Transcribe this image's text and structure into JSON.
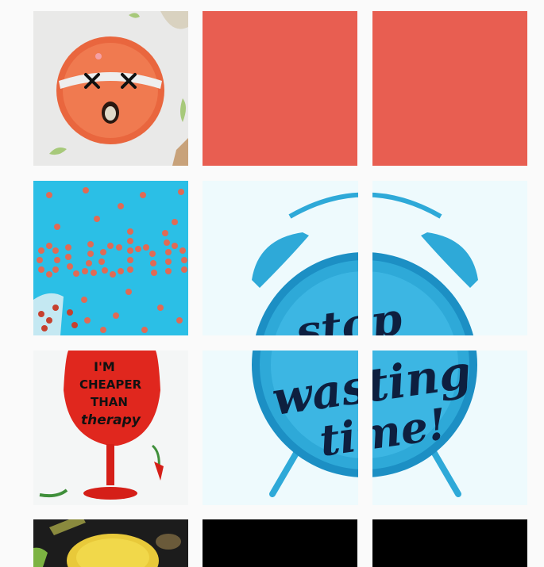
{
  "grid": {
    "posts": [
      {
        "subject": "orange plate with face"
      },
      {
        "subject": "coral tile"
      },
      {
        "subject": "coral tile"
      },
      {
        "subject": "ouch spelled in pills"
      },
      {
        "subject": "alarm clock (part)"
      },
      {
        "subject": "alarm clock (part)"
      },
      {
        "subject": "wine glass"
      },
      {
        "subject": "alarm clock (part)"
      },
      {
        "subject": "alarm clock (part)"
      },
      {
        "subject": "food bowl"
      },
      {
        "subject": "black tile"
      },
      {
        "subject": "black tile"
      }
    ]
  },
  "clock": {
    "line1": "stop",
    "line2": "wasting",
    "line3": "time!"
  },
  "glass": {
    "line1": "I'M",
    "line2": "CHEAPER",
    "line3": "THAN",
    "line4": "therapy"
  },
  "pills": {
    "word": "ouch"
  },
  "colors": {
    "coral": "#e85e51",
    "cyan": "#2bbfe6",
    "clock_blue": "#2ea9d8",
    "background": "#fafafa"
  }
}
